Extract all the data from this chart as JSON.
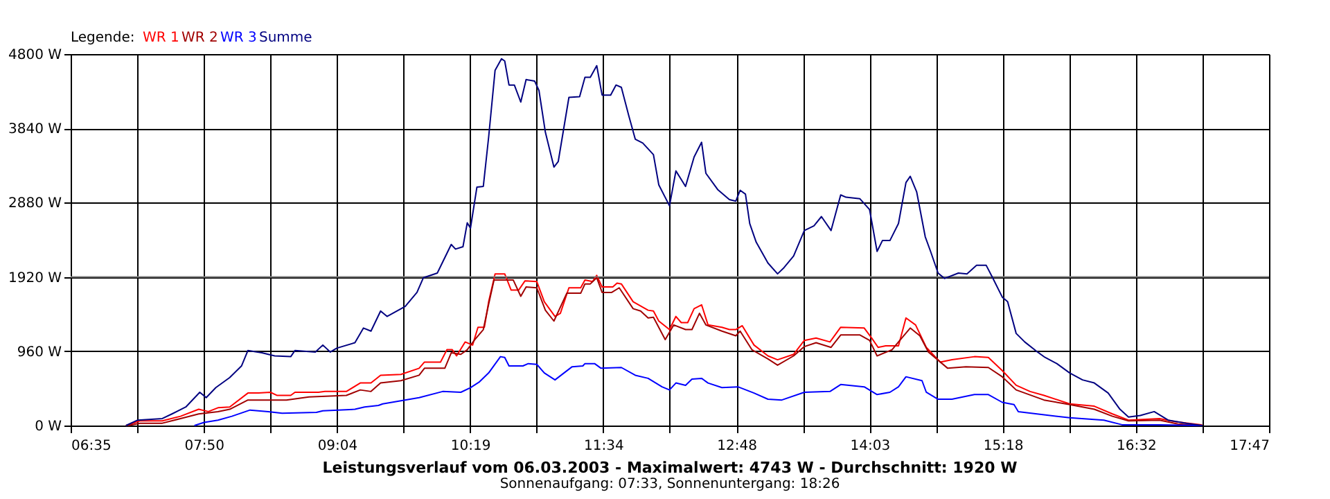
{
  "chart_data": {
    "type": "line",
    "title": "Leistungsverlauf vom 06.03.2003 - Maximalwert: 4743 W - Durchschnitt: 1920 W",
    "subtitle": "Sonnenaufgang: 07:33, Sonnenuntergang: 18:26",
    "legend_title": "Legende:",
    "legend": "top left",
    "grid": true,
    "marker": "none",
    "line_style": "solid",
    "xlim": [
      6.5833,
      17.7833
    ],
    "ylim": [
      0,
      4800
    ],
    "xticks": [
      {
        "value": 6.5833,
        "label": "06:35"
      },
      {
        "value": 7.2056,
        "label": null
      },
      {
        "value": 7.8278,
        "label": "07:50"
      },
      {
        "value": 8.45,
        "label": null
      },
      {
        "value": 9.0722,
        "label": "09:04"
      },
      {
        "value": 9.6944,
        "label": null
      },
      {
        "value": 10.3167,
        "label": "10:19"
      },
      {
        "value": 10.9389,
        "label": null
      },
      {
        "value": 11.5611,
        "label": "11:34"
      },
      {
        "value": 12.1833,
        "label": null
      },
      {
        "value": 12.8056,
        "label": "12:48"
      },
      {
        "value": 13.4278,
        "label": null
      },
      {
        "value": 14.05,
        "label": "14:03"
      },
      {
        "value": 14.6722,
        "label": null
      },
      {
        "value": 15.2944,
        "label": "15:18"
      },
      {
        "value": 15.9167,
        "label": null
      },
      {
        "value": 16.5389,
        "label": "16:32"
      },
      {
        "value": 17.1611,
        "label": null
      },
      {
        "value": 17.7833,
        "label": "17:47"
      }
    ],
    "yticks": [
      {
        "value": 0,
        "label": "0 W"
      },
      {
        "value": 960,
        "label": "960 W"
      },
      {
        "value": 1920,
        "label": "1920 W"
      },
      {
        "value": 2880,
        "label": "2880 W"
      },
      {
        "value": 3840,
        "label": "3840 W"
      },
      {
        "value": 4800,
        "label": "4800 W"
      }
    ],
    "ref_lines": [
      {
        "axis": "y",
        "value": 1920,
        "color": "#808080"
      }
    ],
    "series": [
      {
        "name": "WR 1",
        "color": "#ff0000",
        "x": [
          7.1,
          7.23,
          7.44,
          7.61,
          7.78,
          7.87,
          7.96,
          8.07,
          8.24,
          8.34,
          8.45,
          8.51,
          8.64,
          8.68,
          8.9,
          8.96,
          9.16,
          9.29,
          9.39,
          9.48,
          9.67,
          9.84,
          9.89,
          10.04,
          10.1,
          10.15,
          10.19,
          10.27,
          10.34,
          10.39,
          10.45,
          10.49,
          10.55,
          10.64,
          10.7,
          10.77,
          10.83,
          10.94,
          11.01,
          11.11,
          11.16,
          11.24,
          11.35,
          11.39,
          11.46,
          11.5,
          11.55,
          11.65,
          11.69,
          11.73,
          11.84,
          11.98,
          12.03,
          12.08,
          12.18,
          12.24,
          12.29,
          12.35,
          12.41,
          12.48,
          12.54,
          12.67,
          12.74,
          12.8,
          12.86,
          12.97,
          13.1,
          13.19,
          13.34,
          13.44,
          13.55,
          13.68,
          13.78,
          14.0,
          14.07,
          14.13,
          14.2,
          14.32,
          14.39,
          14.48,
          14.58,
          14.71,
          14.82,
          15.03,
          15.16,
          15.29,
          15.42,
          15.55,
          15.68,
          15.92,
          16.15,
          16.32,
          16.47,
          16.76,
          16.91,
          17.15,
          17.16
        ],
        "values": [
          0,
          60,
          60,
          120,
          210,
          180,
          230,
          240,
          420,
          420,
          430,
          390,
          390,
          430,
          430,
          440,
          440,
          550,
          550,
          650,
          660,
          740,
          820,
          820,
          980,
          980,
          900,
          1080,
          1040,
          1270,
          1270,
          1600,
          1960,
          1960,
          1750,
          1750,
          1870,
          1860,
          1600,
          1410,
          1450,
          1780,
          1780,
          1880,
          1860,
          1940,
          1790,
          1790,
          1840,
          1830,
          1600,
          1490,
          1480,
          1350,
          1240,
          1410,
          1330,
          1330,
          1510,
          1560,
          1300,
          1270,
          1240,
          1240,
          1290,
          1040,
          900,
          850,
          920,
          1100,
          1130,
          1080,
          1270,
          1260,
          1130,
          1010,
          1030,
          1030,
          1390,
          1300,
          1010,
          820,
          850,
          890,
          880,
          710,
          520,
          440,
          390,
          280,
          250,
          150,
          70,
          90,
          50,
          10,
          0
        ]
      },
      {
        "name": "WR 2",
        "color": "#a00000",
        "x": [
          7.12,
          7.23,
          7.44,
          7.61,
          7.78,
          7.96,
          8.07,
          8.24,
          8.6,
          8.81,
          9.16,
          9.29,
          9.39,
          9.48,
          9.67,
          9.84,
          9.89,
          10.08,
          10.14,
          10.23,
          10.29,
          10.36,
          10.44,
          10.49,
          10.54,
          10.72,
          10.79,
          10.84,
          10.94,
          11.02,
          11.1,
          11.22,
          11.35,
          11.39,
          11.44,
          11.5,
          11.55,
          11.64,
          11.71,
          11.84,
          11.91,
          11.98,
          12.03,
          12.14,
          12.22,
          12.33,
          12.39,
          12.46,
          12.52,
          12.67,
          12.8,
          12.84,
          12.95,
          13.1,
          13.19,
          13.34,
          13.44,
          13.55,
          13.69,
          13.78,
          13.96,
          14.05,
          14.12,
          14.26,
          14.32,
          14.43,
          14.52,
          14.6,
          14.78,
          14.95,
          15.16,
          15.29,
          15.42,
          15.68,
          15.92,
          16.15,
          16.32,
          16.47,
          16.76,
          16.93,
          17.16
        ],
        "values": [
          0,
          30,
          30,
          90,
          150,
          180,
          210,
          330,
          330,
          370,
          390,
          460,
          440,
          550,
          580,
          650,
          740,
          740,
          940,
          920,
          980,
          1110,
          1240,
          1570,
          1880,
          1880,
          1670,
          1790,
          1780,
          1490,
          1350,
          1710,
          1710,
          1830,
          1830,
          1910,
          1720,
          1720,
          1780,
          1510,
          1480,
          1390,
          1400,
          1110,
          1300,
          1240,
          1240,
          1450,
          1300,
          1220,
          1160,
          1220,
          980,
          860,
          780,
          900,
          1020,
          1070,
          1010,
          1170,
          1170,
          1100,
          900,
          980,
          1080,
          1260,
          1160,
          950,
          740,
          760,
          750,
          630,
          460,
          330,
          270,
          210,
          120,
          60,
          70,
          20,
          0
        ]
      },
      {
        "name": "WR 3",
        "color": "#0000ff",
        "x": [
          7.74,
          7.83,
          7.96,
          8.09,
          8.26,
          8.43,
          8.56,
          8.88,
          8.94,
          9.24,
          9.33,
          9.46,
          9.5,
          9.84,
          10.06,
          10.23,
          10.32,
          10.4,
          10.49,
          10.6,
          10.64,
          10.68,
          10.81,
          10.86,
          10.94,
          11.01,
          11.11,
          11.27,
          11.37,
          11.39,
          11.48,
          11.54,
          11.73,
          11.86,
          11.98,
          12.11,
          12.18,
          12.24,
          12.33,
          12.39,
          12.48,
          12.54,
          12.67,
          12.82,
          12.97,
          13.1,
          13.23,
          13.44,
          13.68,
          13.78,
          14.0,
          14.12,
          14.24,
          14.32,
          14.39,
          14.54,
          14.58,
          14.69,
          14.82,
          15.03,
          15.16,
          15.29,
          15.4,
          15.44,
          15.92,
          16.24,
          16.41,
          16.76,
          17.16
        ],
        "values": [
          0,
          40,
          70,
          120,
          200,
          180,
          160,
          170,
          190,
          210,
          240,
          260,
          280,
          360,
          440,
          430,
          490,
          560,
          680,
          890,
          880,
          770,
          770,
          800,
          790,
          680,
          590,
          760,
          770,
          800,
          800,
          740,
          750,
          650,
          610,
          500,
          460,
          550,
          520,
          600,
          610,
          550,
          490,
          500,
          420,
          340,
          330,
          430,
          440,
          530,
          500,
          400,
          430,
          500,
          630,
          580,
          430,
          340,
          340,
          400,
          400,
          300,
          270,
          180,
          100,
          70,
          10,
          10,
          0
        ]
      },
      {
        "name": "Summe",
        "color": "#000080",
        "x": [
          7.1,
          7.21,
          7.44,
          7.53,
          7.66,
          7.79,
          7.85,
          7.94,
          8.07,
          8.18,
          8.24,
          8.37,
          8.49,
          8.64,
          8.68,
          8.87,
          8.94,
          9.01,
          9.07,
          9.24,
          9.32,
          9.39,
          9.48,
          9.54,
          9.71,
          9.82,
          9.88,
          10.01,
          10.14,
          10.18,
          10.25,
          10.29,
          10.32,
          10.38,
          10.44,
          10.49,
          10.55,
          10.61,
          10.64,
          10.68,
          10.73,
          10.79,
          10.84,
          10.92,
          10.96,
          11.02,
          11.1,
          11.14,
          11.24,
          11.34,
          11.39,
          11.44,
          11.5,
          11.55,
          11.63,
          11.68,
          11.73,
          11.8,
          11.86,
          11.93,
          12.03,
          12.08,
          12.18,
          12.24,
          12.33,
          12.41,
          12.48,
          12.52,
          12.63,
          12.74,
          12.8,
          12.84,
          12.89,
          12.93,
          12.99,
          13.1,
          13.19,
          13.25,
          13.34,
          13.44,
          13.53,
          13.6,
          13.69,
          13.78,
          13.83,
          13.96,
          14.05,
          14.12,
          14.17,
          14.24,
          14.32,
          14.39,
          14.43,
          14.49,
          14.57,
          14.62,
          14.69,
          14.75,
          14.88,
          14.96,
          15.05,
          15.14,
          15.2,
          15.29,
          15.34,
          15.42,
          15.5,
          15.62,
          15.69,
          15.8,
          15.92,
          16.04,
          16.15,
          16.28,
          16.39,
          16.47,
          16.58,
          16.71,
          16.84,
          17.01,
          17.11,
          17.16
        ],
        "values": [
          0,
          70,
          90,
          150,
          240,
          430,
          360,
          490,
          620,
          770,
          970,
          940,
          900,
          890,
          970,
          950,
          1040,
          950,
          1000,
          1070,
          1260,
          1220,
          1480,
          1410,
          1540,
          1720,
          1910,
          1970,
          2340,
          2280,
          2310,
          2620,
          2550,
          3080,
          3090,
          3730,
          4590,
          4740,
          4710,
          4400,
          4400,
          4180,
          4470,
          4450,
          4330,
          3790,
          3340,
          3410,
          4240,
          4250,
          4500,
          4500,
          4650,
          4270,
          4270,
          4400,
          4370,
          4000,
          3700,
          3650,
          3500,
          3110,
          2840,
          3290,
          3090,
          3470,
          3660,
          3260,
          3050,
          2920,
          2900,
          3040,
          2990,
          2610,
          2370,
          2100,
          1960,
          2040,
          2190,
          2520,
          2580,
          2700,
          2520,
          2980,
          2950,
          2930,
          2790,
          2250,
          2390,
          2390,
          2610,
          3140,
          3220,
          3020,
          2440,
          2250,
          1970,
          1900,
          1970,
          1960,
          2070,
          2070,
          1910,
          1660,
          1600,
          1190,
          1080,
          950,
          880,
          800,
          680,
          590,
          550,
          420,
          210,
          110,
          130,
          180,
          70,
          30,
          10,
          0
        ]
      }
    ]
  }
}
